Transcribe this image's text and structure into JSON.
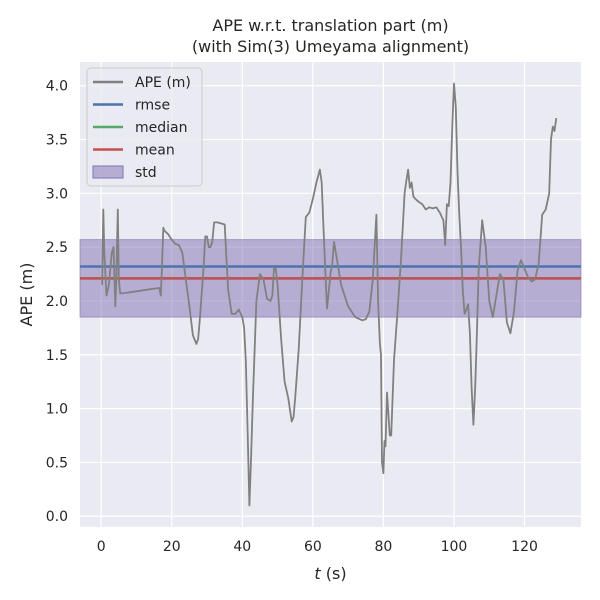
{
  "chart_data": {
    "type": "line",
    "title_line1": "APE w.r.t. translation part (m)",
    "title_line2": "(with Sim(3) Umeyama alignment)",
    "xlabel_italic": "t",
    "xlabel_rest": " (s)",
    "ylabel": "APE (m)",
    "xlim": [
      -6,
      136
    ],
    "ylim": [
      -0.1,
      4.22
    ],
    "xticks": [
      0,
      20,
      40,
      60,
      80,
      100,
      120
    ],
    "yticks": [
      0.0,
      0.5,
      1.0,
      1.5,
      2.0,
      2.5,
      3.0,
      3.5,
      4.0
    ],
    "ytick_labels": [
      "0.0",
      "0.5",
      "1.0",
      "1.5",
      "2.0",
      "2.5",
      "3.0",
      "3.5",
      "4.0"
    ],
    "grid": true,
    "legend_position": "top-left",
    "legend": [
      {
        "label": "APE (m)",
        "kind": "line",
        "color": "#808080"
      },
      {
        "label": "rmse",
        "kind": "line",
        "color": "#4c72b0"
      },
      {
        "label": "median",
        "kind": "line",
        "color": "#55a868"
      },
      {
        "label": "mean",
        "kind": "line",
        "color": "#c44e52"
      },
      {
        "label": "std",
        "kind": "patch",
        "color": "#8172b2"
      }
    ],
    "rmse": 2.32,
    "median": 2.21,
    "mean": 2.21,
    "std_band": [
      1.85,
      2.57
    ],
    "ape_series": {
      "name": "APE (m)",
      "x": [
        0.3,
        0.6,
        0.9,
        1.5,
        2.2,
        3.0,
        3.5,
        4.0,
        4.3,
        4.7,
        5.0,
        5.4,
        6.0,
        8.0,
        10.0,
        14.0,
        16.5,
        16.9,
        17.2,
        17.6,
        18.0,
        19.0,
        20.0,
        21.0,
        22.0,
        23.0,
        24.0,
        25.0,
        26.0,
        27.0,
        27.5,
        28.0,
        29.0,
        29.5,
        30.0,
        30.5,
        31.0,
        31.5,
        32.0,
        33.0,
        35.0,
        35.5,
        36.0,
        37.0,
        38.0,
        39.0,
        40.0,
        40.5,
        41.0,
        41.5,
        42.0,
        42.5,
        43.0,
        44.0,
        45.0,
        46.0,
        47.0,
        48.0,
        48.5,
        49.0,
        49.5,
        50.0,
        51.0,
        52.0,
        53.0,
        54.0,
        54.5,
        55.0,
        56.0,
        57.0,
        58.0,
        59.0,
        60.0,
        61.0,
        62.0,
        62.5,
        63.0,
        63.5,
        64.0,
        65.0,
        65.5,
        66.0,
        67.0,
        68.0,
        69.0,
        70.0,
        72.0,
        74.0,
        75.0,
        76.0,
        77.0,
        77.5,
        78.0,
        78.5,
        79.0,
        79.3,
        79.6,
        80.0,
        80.3,
        80.6,
        81.0,
        81.4,
        81.8,
        82.2,
        82.6,
        83.0,
        84.0,
        85.0,
        86.0,
        86.5,
        87.0,
        87.5,
        88.0,
        88.5,
        89.0,
        90.0,
        91.0,
        92.0,
        93.0,
        94.0,
        95.0,
        96.0,
        97.0,
        97.5,
        98.0,
        98.5,
        99.0,
        99.5,
        100.0,
        100.5,
        101.0,
        101.5,
        102.0,
        102.5,
        103.0,
        103.5,
        104.0,
        104.5,
        105.0,
        105.5,
        106.0,
        106.5,
        107.0,
        108.0,
        109.0,
        110.0,
        111.0,
        112.0,
        113.0,
        114.0,
        115.0,
        116.0,
        117.0,
        118.0,
        119.0,
        120.0,
        121.0,
        122.0,
        123.0,
        124.0,
        125.0,
        126.0,
        127.0,
        127.5,
        128.0,
        128.5,
        129.0
      ],
      "y": [
        2.15,
        2.85,
        2.45,
        2.05,
        2.15,
        2.45,
        2.5,
        1.95,
        2.2,
        2.85,
        2.2,
        2.07,
        2.07,
        2.08,
        2.09,
        2.11,
        2.12,
        2.05,
        2.3,
        2.68,
        2.65,
        2.62,
        2.57,
        2.53,
        2.52,
        2.45,
        2.2,
        1.95,
        1.68,
        1.6,
        1.65,
        1.85,
        2.3,
        2.6,
        2.6,
        2.5,
        2.5,
        2.55,
        2.73,
        2.73,
        2.71,
        2.4,
        2.1,
        1.88,
        1.88,
        1.92,
        1.85,
        1.75,
        1.45,
        0.8,
        0.1,
        0.55,
        1.1,
        2.0,
        2.25,
        2.2,
        2.02,
        2.0,
        2.05,
        2.3,
        2.3,
        2.15,
        1.65,
        1.25,
        1.1,
        0.88,
        0.92,
        1.1,
        1.55,
        2.2,
        2.78,
        2.82,
        2.95,
        3.1,
        3.22,
        3.1,
        2.7,
        2.3,
        1.93,
        2.25,
        2.35,
        2.55,
        2.35,
        2.15,
        2.05,
        1.95,
        1.85,
        1.82,
        1.83,
        1.9,
        2.2,
        2.5,
        2.8,
        2.0,
        1.6,
        1.5,
        0.5,
        0.4,
        0.7,
        0.65,
        1.15,
        0.95,
        0.75,
        0.75,
        1.1,
        1.45,
        1.9,
        2.4,
        3.0,
        3.12,
        3.22,
        3.05,
        3.1,
        2.97,
        2.95,
        2.92,
        2.9,
        2.85,
        2.87,
        2.86,
        2.87,
        2.82,
        2.75,
        2.52,
        2.9,
        2.88,
        3.1,
        3.6,
        4.02,
        3.8,
        3.2,
        2.8,
        2.5,
        2.1,
        1.88,
        1.92,
        1.97,
        1.7,
        1.2,
        0.85,
        1.2,
        1.7,
        2.3,
        2.75,
        2.5,
        2.0,
        1.85,
        2.05,
        2.25,
        2.2,
        1.8,
        1.7,
        1.9,
        2.28,
        2.38,
        2.3,
        2.22,
        2.18,
        2.2,
        2.35,
        2.8,
        2.85,
        3.0,
        3.5,
        3.62,
        3.58,
        3.7
      ]
    }
  }
}
